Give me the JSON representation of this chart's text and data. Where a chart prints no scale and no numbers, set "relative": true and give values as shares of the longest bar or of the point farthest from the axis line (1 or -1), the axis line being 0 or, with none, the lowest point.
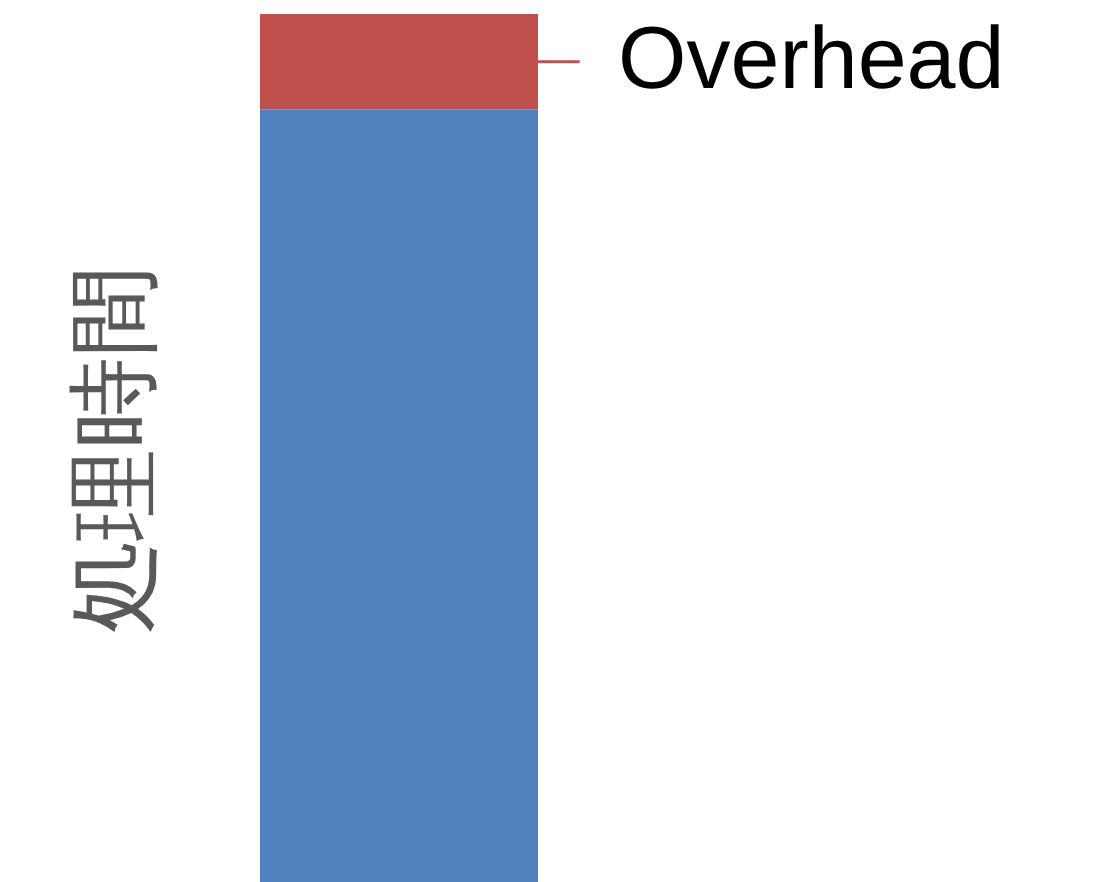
{
  "chart_data": {
    "type": "bar",
    "ylabel": "処理時間",
    "categories": [
      null
    ],
    "stacked": true,
    "relative": true,
    "series": [
      {
        "color": "#4f81bd",
        "values": [
          0.89
        ]
      },
      {
        "name": "Overhead",
        "color": "#c0504d",
        "values": [
          0.11
        ]
      }
    ]
  }
}
